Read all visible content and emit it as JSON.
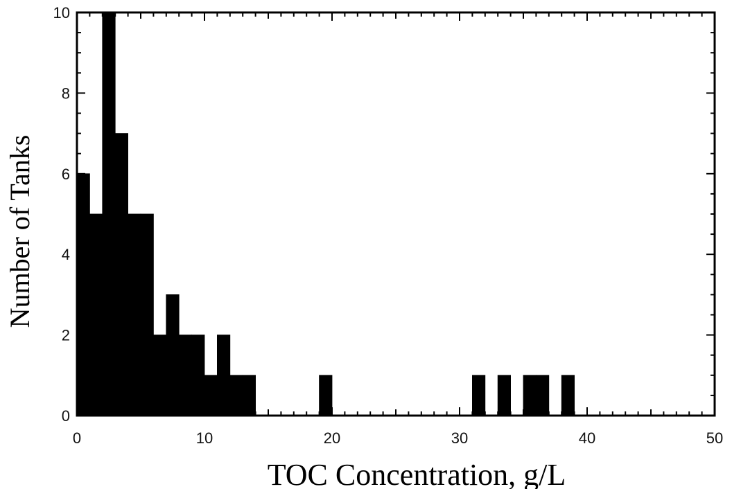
{
  "chart_data": {
    "type": "bar",
    "xlabel": "TOC Concentration, g/L",
    "ylabel": "Number of Tanks",
    "xlim": [
      0,
      50
    ],
    "ylim": [
      0,
      10
    ],
    "x_ticks": [
      "0",
      "10",
      "20",
      "30",
      "40",
      "50"
    ],
    "y_ticks": [
      "0",
      "2",
      "4",
      "6",
      "8",
      "10"
    ],
    "bin_width": 1,
    "bins": [
      {
        "x0": 0,
        "x1": 1,
        "value": 6
      },
      {
        "x0": 1,
        "x1": 2,
        "value": 5
      },
      {
        "x0": 2,
        "x1": 3,
        "value": 10
      },
      {
        "x0": 3,
        "x1": 4,
        "value": 7
      },
      {
        "x0": 4,
        "x1": 5,
        "value": 5
      },
      {
        "x0": 5,
        "x1": 6,
        "value": 5
      },
      {
        "x0": 6,
        "x1": 7,
        "value": 2
      },
      {
        "x0": 7,
        "x1": 8,
        "value": 3
      },
      {
        "x0": 8,
        "x1": 9,
        "value": 2
      },
      {
        "x0": 9,
        "x1": 10,
        "value": 2
      },
      {
        "x0": 10,
        "x1": 11,
        "value": 1
      },
      {
        "x0": 11,
        "x1": 12,
        "value": 2
      },
      {
        "x0": 12,
        "x1": 13,
        "value": 1
      },
      {
        "x0": 13,
        "x1": 14,
        "value": 1
      },
      {
        "x0": 19,
        "x1": 20,
        "value": 1
      },
      {
        "x0": 31,
        "x1": 32,
        "value": 1
      },
      {
        "x0": 33,
        "x1": 34,
        "value": 1
      },
      {
        "x0": 35,
        "x1": 36,
        "value": 1
      },
      {
        "x0": 36,
        "x1": 37,
        "value": 1
      },
      {
        "x0": 38,
        "x1": 39,
        "value": 1
      }
    ],
    "grid": false,
    "bar_color": "#000000"
  }
}
